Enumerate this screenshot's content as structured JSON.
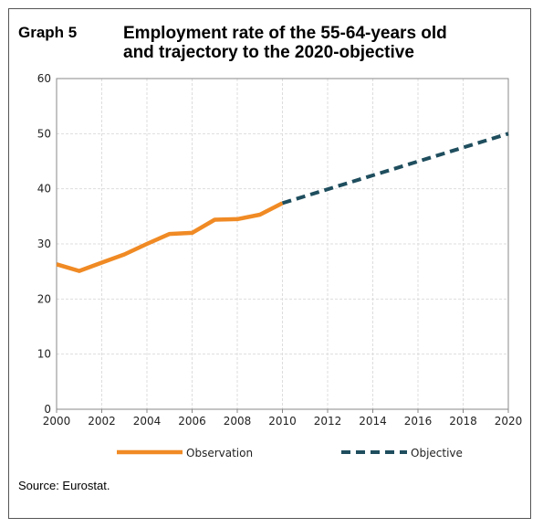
{
  "header": {
    "label": "Graph 5",
    "title_line1": "Employment rate of the 55-64-years old",
    "title_line2": "and trajectory to the 2020-objective"
  },
  "source": "Source: Eurostat.",
  "colors": {
    "observation": "#f08a24",
    "objective": "#1f4e5e",
    "grid": "#dddddd",
    "axis": "#888888"
  },
  "chart_data": {
    "type": "line",
    "title": "Employment rate of the 55-64-years old and trajectory to the 2020-objective",
    "xlim": [
      2000,
      2020
    ],
    "ylim": [
      0,
      60
    ],
    "x_ticks": [
      2000,
      2002,
      2004,
      2006,
      2008,
      2010,
      2012,
      2014,
      2016,
      2018,
      2020
    ],
    "y_ticks": [
      0,
      10,
      20,
      30,
      40,
      50,
      60
    ],
    "grid": true,
    "legend_position": "bottom",
    "series": [
      {
        "name": "Observation",
        "style": "solid",
        "x": [
          2000,
          2001,
          2002,
          2003,
          2004,
          2005,
          2006,
          2007,
          2008,
          2009,
          2010
        ],
        "y": [
          26.3,
          25.1,
          26.6,
          28.1,
          30.0,
          31.8,
          32.0,
          34.4,
          34.5,
          35.3,
          37.4
        ]
      },
      {
        "name": "Objective",
        "style": "dashed",
        "x": [
          2010,
          2020
        ],
        "y": [
          37.4,
          50.0
        ]
      }
    ]
  }
}
